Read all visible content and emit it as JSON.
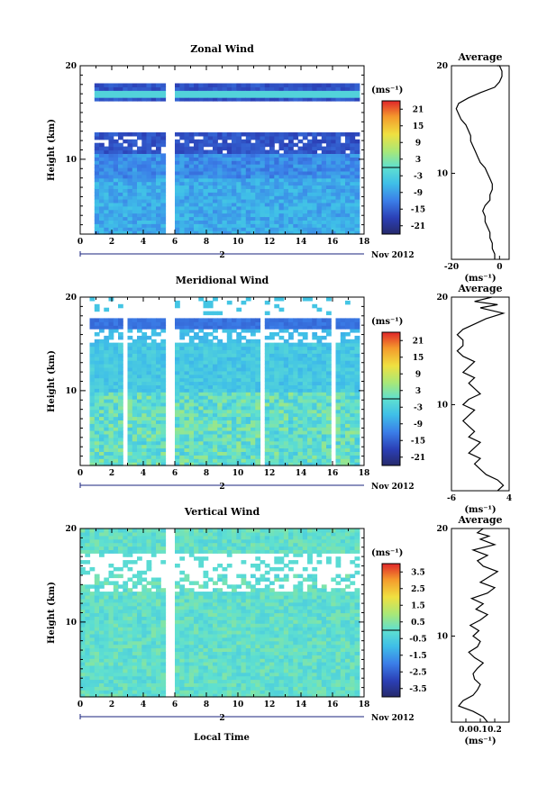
{
  "figure": {
    "xlabel": "Local Time",
    "date_label": "Nov 2012",
    "day_label": "2",
    "unit_label": "(ms⁻¹)",
    "average_title": "Average"
  },
  "chart_data": [
    {
      "type": "heatmap",
      "title": "Zonal Wind",
      "xlabel": "Local Time",
      "ylabel": "Height (km)",
      "xlim": [
        0,
        18
      ],
      "ylim": [
        2,
        20
      ],
      "x_ticks": [
        "0",
        "2",
        "4",
        "6",
        "8",
        "10",
        "12",
        "14",
        "16",
        "18"
      ],
      "y_ticks": [
        "10",
        "20"
      ],
      "colorbar": {
        "unit": "(ms⁻¹)",
        "range": [
          -24,
          24
        ],
        "ticks": [
          "21",
          "15",
          "9",
          "3",
          "-3",
          "-9",
          "-15",
          "-21"
        ]
      },
      "data_gaps_x": [
        [
          0,
          1.0
        ],
        [
          5.5,
          6.0
        ],
        [
          17.6,
          18
        ]
      ],
      "profile": {
        "title": "Average",
        "xlabel": "(ms⁻¹)",
        "xlim": [
          -20,
          4
        ],
        "x_ticks": [
          "-20",
          "0"
        ],
        "y_ticks": [
          "10",
          "20"
        ],
        "x": [
          -2,
          -2,
          -3,
          -3,
          -4,
          -4,
          -5,
          -6,
          -6,
          -7,
          -6,
          -4,
          -4,
          -3,
          -3,
          -4,
          -5,
          -6,
          -8,
          -9,
          -10,
          -11,
          -12,
          -12,
          -13,
          -14,
          -16,
          -17,
          -18,
          -17,
          -13,
          -8,
          -2,
          0,
          1,
          1,
          0,
          -1
        ],
        "y": [
          2,
          2.5,
          3,
          3.5,
          4,
          4.5,
          5,
          5.5,
          6,
          6.5,
          7,
          7.5,
          8,
          8.5,
          9,
          9.5,
          10,
          10.5,
          11,
          11.5,
          12,
          12.5,
          13,
          13.5,
          14,
          14.5,
          15,
          15.5,
          16,
          16.5,
          17,
          17.5,
          18,
          18.5,
          19,
          19.5,
          20,
          20
        ]
      }
    },
    {
      "type": "heatmap",
      "title": "Meridional Wind",
      "xlabel": "Local Time",
      "ylabel": "Height (km)",
      "xlim": [
        0,
        18
      ],
      "ylim": [
        2,
        20
      ],
      "x_ticks": [
        "0",
        "2",
        "4",
        "6",
        "8",
        "10",
        "12",
        "14",
        "16",
        "18"
      ],
      "y_ticks": [
        "10",
        "20"
      ],
      "colorbar": {
        "unit": "(ms⁻¹)",
        "range": [
          -24,
          24
        ],
        "ticks": [
          "21",
          "15",
          "9",
          "3",
          "-3",
          "-9",
          "-15",
          "-21"
        ]
      },
      "data_gaps_x": [
        [
          0,
          0.5
        ],
        [
          2.7,
          3.0
        ],
        [
          5.5,
          6.0
        ],
        [
          11.4,
          11.8
        ],
        [
          16.0,
          16.3
        ],
        [
          17.6,
          18
        ]
      ],
      "profile": {
        "title": "Average",
        "xlabel": "(ms⁻¹)",
        "xlim": [
          -6,
          4
        ],
        "x_ticks": [
          "-6",
          "4"
        ],
        "y_ticks": [
          "10",
          "20"
        ],
        "x": [
          2,
          3,
          2,
          0,
          -1,
          -2,
          -1,
          -3,
          -2,
          -1,
          -3,
          -2,
          -3,
          -4,
          -3,
          -2,
          -4,
          -3,
          -1,
          -2,
          -3,
          -2,
          -4,
          -3,
          -2,
          -4,
          -5,
          -4,
          -4,
          -5,
          -4,
          -2,
          0,
          3,
          -1,
          2,
          -2,
          1
        ],
        "y": [
          2,
          2.5,
          3,
          3.5,
          4,
          4.5,
          5,
          5.5,
          6,
          6.5,
          7,
          7.5,
          8,
          8.5,
          9,
          9.5,
          10,
          10.5,
          11,
          11.5,
          12,
          12.5,
          13,
          13.5,
          14,
          14.5,
          15,
          15.5,
          16,
          16.5,
          17,
          17.5,
          18,
          18.5,
          19,
          19.3,
          19.6,
          20
        ]
      }
    },
    {
      "type": "heatmap",
      "title": "Vertical Wind",
      "xlabel": "Local Time",
      "ylabel": "Height (km)",
      "xlim": [
        0,
        18
      ],
      "ylim": [
        2,
        20
      ],
      "x_ticks": [
        "0",
        "2",
        "4",
        "6",
        "8",
        "10",
        "12",
        "14",
        "16",
        "18"
      ],
      "y_ticks": [
        "10",
        "20"
      ],
      "colorbar": {
        "unit": "(ms⁻¹)",
        "range": [
          -4,
          4
        ],
        "ticks": [
          "3.5",
          "2.5",
          "1.5",
          "0.5",
          "-0.5",
          "-1.5",
          "-2.5",
          "-3.5"
        ]
      },
      "data_gaps_x": [
        [
          0.9,
          1.0
        ],
        [
          5.5,
          6.0
        ],
        [
          17.6,
          18
        ]
      ],
      "profile": {
        "title": "Average",
        "xlabel": "(ms⁻¹)",
        "xlim": [
          -0.1,
          0.3
        ],
        "x_ticks": [
          "0.0",
          "0.1",
          "0.2"
        ],
        "y_ticks": [
          "10",
          "20"
        ],
        "x": [
          0.15,
          0.12,
          0.05,
          -0.05,
          -0.02,
          0.05,
          0.08,
          0.1,
          0.06,
          0.05,
          0.08,
          0.12,
          0.06,
          0.02,
          0.08,
          0.1,
          0.05,
          0.09,
          0.03,
          0.1,
          0.15,
          0.07,
          0.12,
          0.04,
          0.15,
          0.2,
          0.1,
          0.16,
          0.22,
          0.12,
          0.08,
          0.15,
          0.05,
          0.2,
          0.1,
          0.16,
          0.08,
          0.12
        ],
        "y": [
          2,
          2.5,
          3,
          3.5,
          4,
          4.5,
          5,
          5.5,
          6,
          6.5,
          7,
          7.5,
          8,
          8.5,
          9,
          9.5,
          10,
          10.5,
          11,
          11.5,
          12,
          12.5,
          13,
          13.5,
          14,
          14.5,
          15,
          15.5,
          16,
          16.5,
          17,
          17.5,
          18,
          18.5,
          19,
          19.3,
          19.6,
          20
        ]
      }
    }
  ]
}
